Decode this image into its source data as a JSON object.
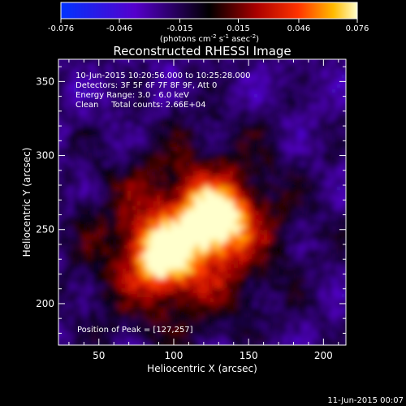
{
  "chart_data": {
    "type": "heatmap",
    "title": "Reconstructed RHESSI Image",
    "xlabel": "Heliocentric X (arcsec)",
    "ylabel": "Heliocentric Y (arcsec)",
    "xlim": [
      23,
      215
    ],
    "ylim": [
      172,
      365
    ],
    "x_ticks": [
      50,
      100,
      150,
      200
    ],
    "y_ticks": [
      200,
      250,
      300,
      350
    ],
    "colorbar": {
      "range": [
        -0.076,
        0.076
      ],
      "ticks": [
        "-0.076",
        "-0.046",
        "-0.015",
        "0.015",
        "0.046",
        "0.076"
      ],
      "unit_label_parts": {
        "a": "(photons cm",
        "b": "-2",
        "c": " s",
        "d": "-1",
        "e": " asec",
        "f": "-2",
        "g": ")"
      }
    },
    "annotations": [
      "10-Jun-2015 10:20:56.000 to 10:25:28.000",
      "Detectors: 3F 5F 6F 7F 8F 9F, Att 0",
      "Energy Range: 3.0 - 6.0 keV",
      "Clean     Total counts: 2.66E+04"
    ],
    "peak_label": "Position of Peak = [127,257]",
    "peak_position": [
      127,
      257
    ],
    "sources": [
      {
        "x": 127,
        "y": 257,
        "amplitude": 0.076
      },
      {
        "x": 93,
        "y": 232,
        "amplitude": 0.052
      }
    ]
  },
  "footer": {
    "timestamp": "11-Jun-2015 00:07"
  }
}
